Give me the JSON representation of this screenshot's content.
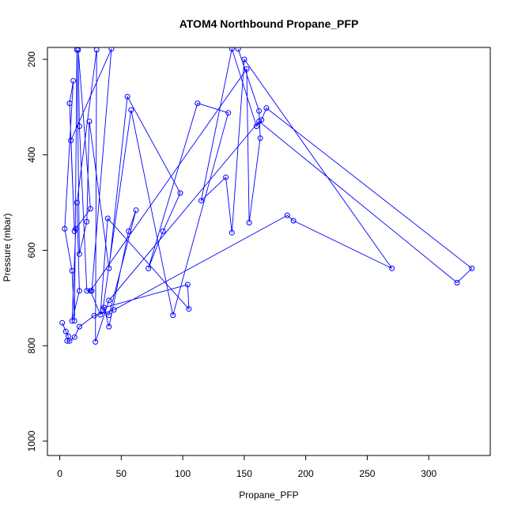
{
  "chart_data": {
    "type": "line",
    "title": "ATOM4 Northbound Propane_PFP",
    "xlabel": "Propane_PFP",
    "ylabel": "Pressure (mbar)",
    "xlim": [
      -10,
      350
    ],
    "ylim": [
      1030,
      175
    ],
    "y_reversed": true,
    "x_ticks": [
      0,
      50,
      100,
      150,
      200,
      250,
      300
    ],
    "y_ticks": [
      200,
      400,
      600,
      800,
      1000
    ],
    "grid": false,
    "color": "#0000ff",
    "series": [
      {
        "points": [
          [
            2,
            752
          ],
          [
            5,
            770
          ],
          [
            7,
            780
          ],
          [
            6,
            790
          ],
          [
            8,
            790
          ],
          [
            12,
            782
          ],
          [
            16,
            760
          ],
          [
            28,
            737
          ],
          [
            44,
            725
          ],
          [
            185,
            527
          ],
          [
            190,
            538
          ],
          [
            270,
            638
          ],
          [
            150,
            200
          ],
          [
            140,
            563
          ],
          [
            135,
            447
          ],
          [
            115,
            496
          ],
          [
            140,
            178
          ],
          [
            160,
            340
          ],
          [
            164,
            327
          ],
          [
            168,
            302
          ],
          [
            335,
            638
          ],
          [
            323,
            668
          ],
          [
            162,
            330
          ],
          [
            40,
            705
          ],
          [
            29,
            792
          ],
          [
            30,
            180
          ],
          [
            14,
            500
          ],
          [
            16,
            685
          ],
          [
            10,
            748
          ],
          [
            13,
            555
          ],
          [
            25,
            513
          ],
          [
            15,
            180
          ],
          [
            16,
            340
          ],
          [
            22,
            685
          ],
          [
            26,
            685
          ],
          [
            42,
            178
          ],
          [
            9,
            370
          ],
          [
            12,
            560
          ],
          [
            8,
            292
          ],
          [
            11,
            245
          ],
          [
            4,
            555
          ],
          [
            10,
            643
          ],
          [
            12,
            748
          ],
          [
            14,
            180
          ],
          [
            16,
            608
          ],
          [
            22,
            540
          ],
          [
            24,
            330
          ],
          [
            40,
            638
          ],
          [
            55,
            278
          ],
          [
            98,
            480
          ],
          [
            84,
            560
          ],
          [
            72,
            638
          ],
          [
            112,
            292
          ],
          [
            137,
            312
          ],
          [
            92,
            736
          ],
          [
            58,
            306
          ],
          [
            35,
            725
          ],
          [
            40,
            736
          ],
          [
            62,
            516
          ],
          [
            56,
            560
          ],
          [
            40,
            760
          ],
          [
            36,
            720
          ],
          [
            104,
            672
          ],
          [
            105,
            723
          ],
          [
            39,
            533
          ],
          [
            33,
            735
          ],
          [
            25,
            685
          ],
          [
            152,
            220
          ],
          [
            154,
            542
          ],
          [
            163,
            365
          ],
          [
            162,
            308
          ],
          [
            145,
            178
          ]
        ]
      }
    ]
  }
}
